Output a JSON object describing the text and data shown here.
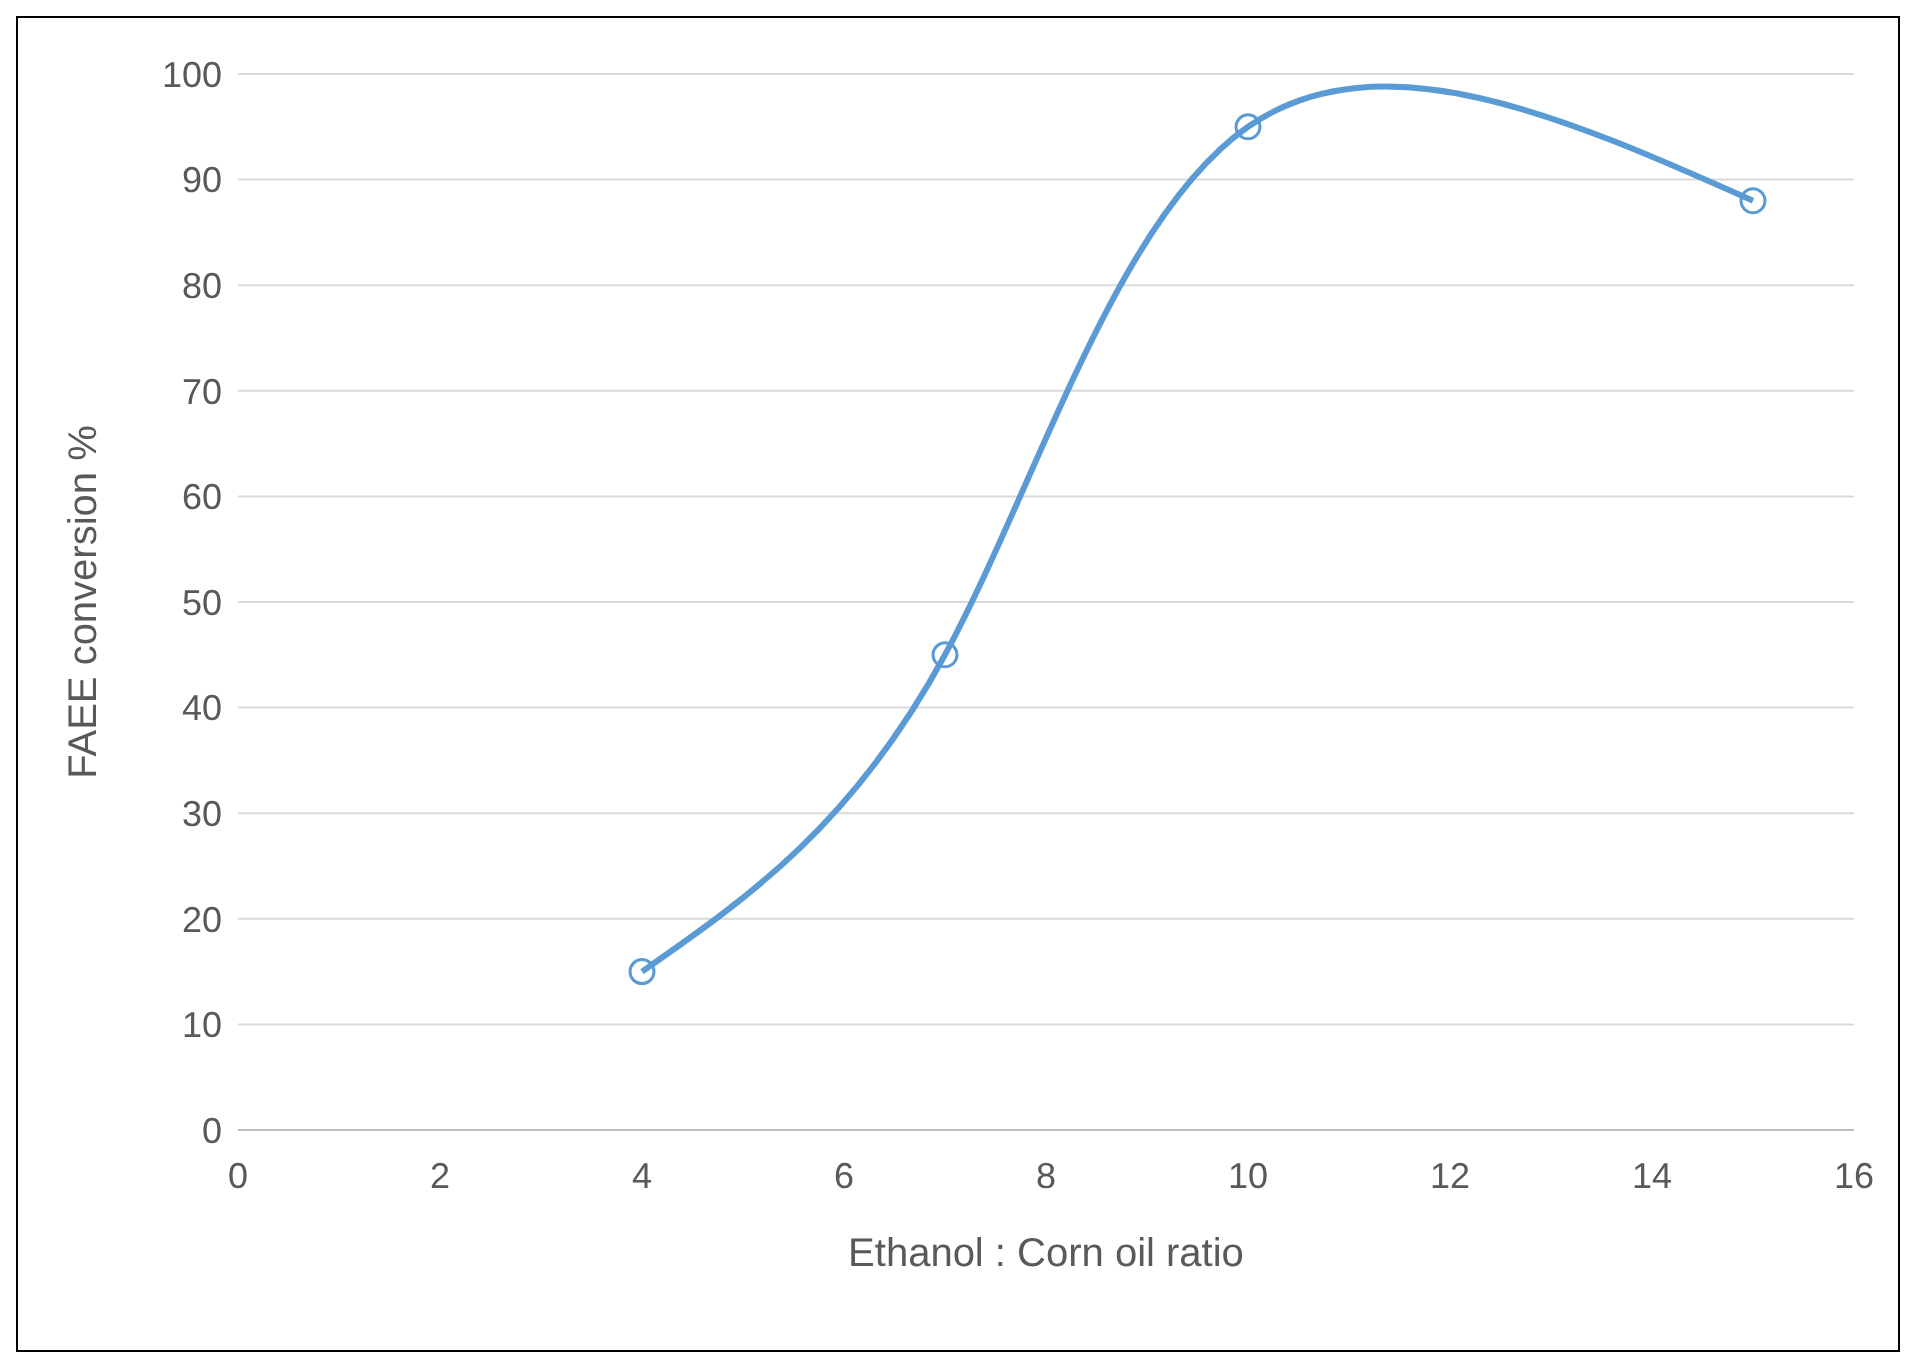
{
  "chart_data": {
    "type": "line",
    "xlabel": "Ethanol : Corn oil ratio",
    "ylabel": "FAEE conversion %",
    "x": [
      4,
      7,
      10,
      15
    ],
    "series": [
      {
        "color": "#5b9bd5",
        "values": [
          15,
          45,
          95,
          88
        ]
      }
    ],
    "xlim": [
      0,
      16
    ],
    "xticks": [
      0,
      2,
      4,
      6,
      8,
      10,
      12,
      14,
      16
    ],
    "ylim": [
      0,
      100
    ],
    "yticks": [
      0,
      10,
      20,
      30,
      40,
      50,
      60,
      70,
      80,
      90,
      100
    ],
    "grid": "y",
    "marker": "circle",
    "line_style": "solid"
  }
}
